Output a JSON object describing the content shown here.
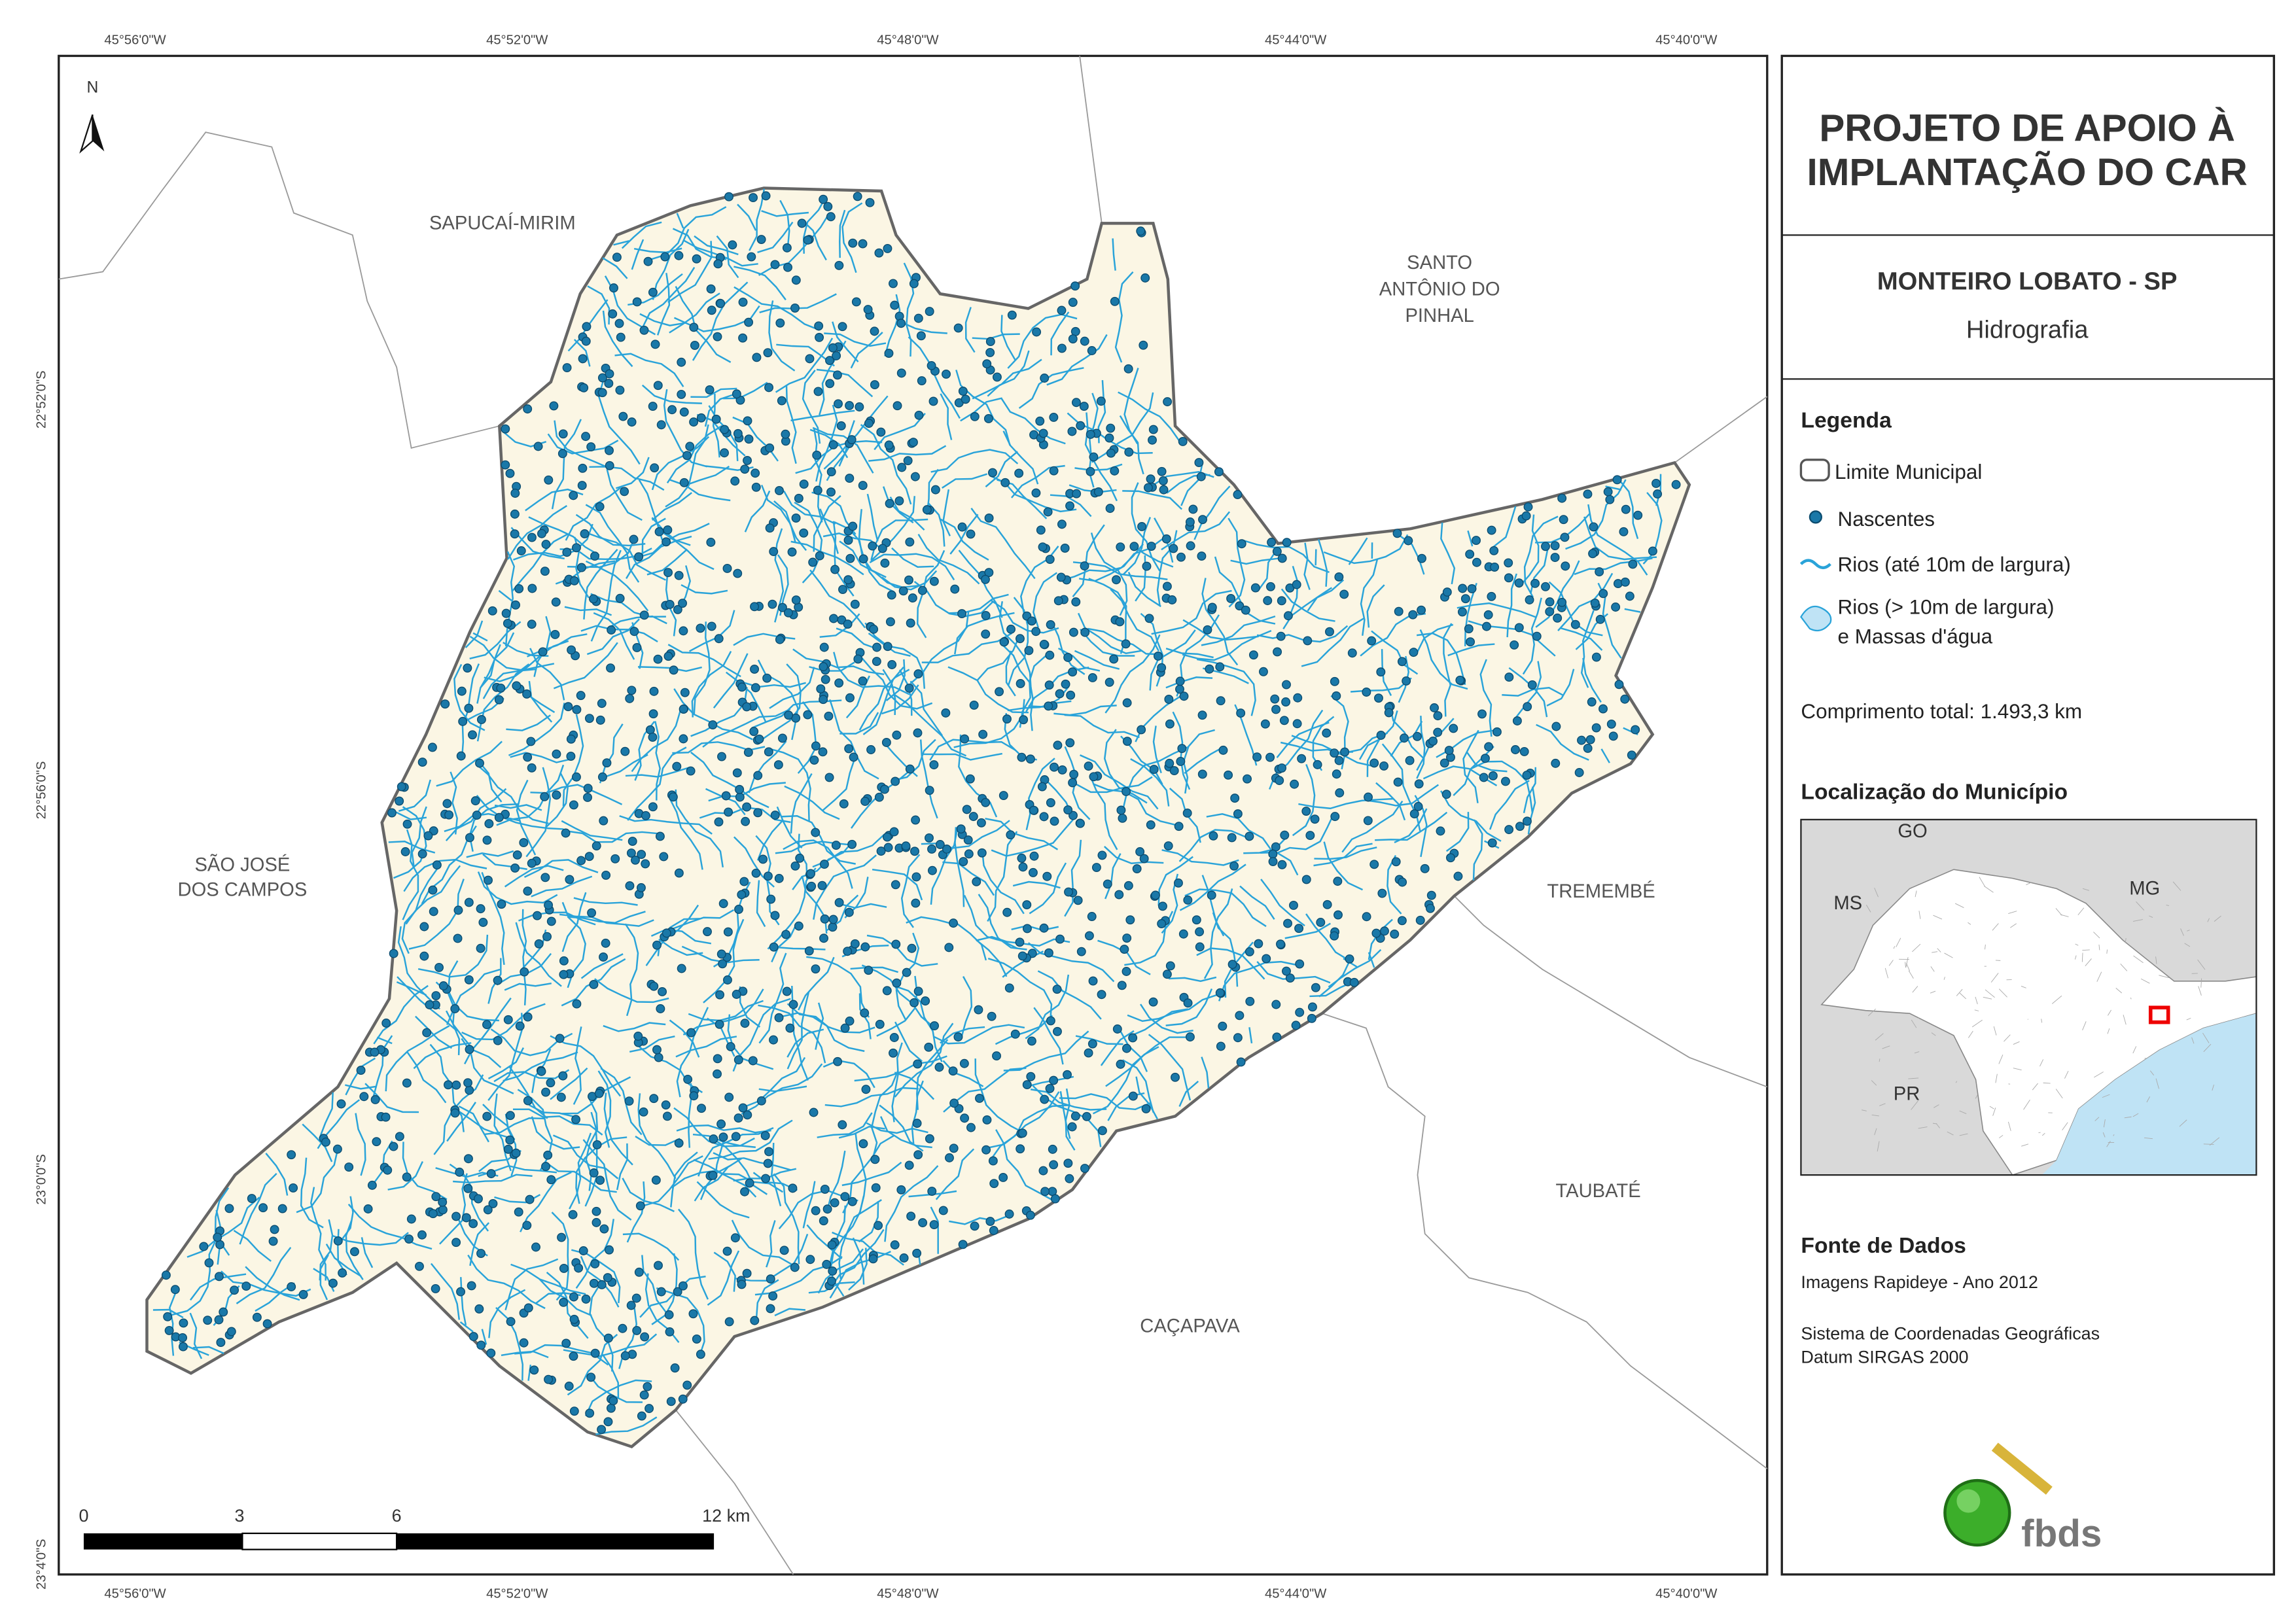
{
  "map": {
    "lon_labels": [
      "45°56'0\"W",
      "45°52'0\"W",
      "45°48'0\"W",
      "45°44'0\"W",
      "45°40'0\"W"
    ],
    "lat_labels": [
      "22°52'0\"S",
      "22°56'0\"S",
      "23°0'0\"S",
      "23°4'0\"S"
    ],
    "north": "N",
    "places": [
      {
        "lines": [
          "SAPUCAÍ-MIRIM"
        ]
      },
      {
        "lines": [
          "SANTO",
          "ANTÔNIO DO",
          "PINHAL"
        ]
      },
      {
        "lines": [
          "SÃO JOSÉ",
          "DOS CAMPOS"
        ]
      },
      {
        "lines": [
          "TREMEMBÉ"
        ]
      },
      {
        "lines": [
          "TAUBATÉ"
        ]
      },
      {
        "lines": [
          "CAÇAPAVA"
        ]
      }
    ],
    "scale_bar": [
      "0",
      "3",
      "6",
      "12 km"
    ]
  },
  "panel": {
    "title": [
      "PROJETO DE APOIO À",
      "IMPLANTAÇÃO DO CAR"
    ],
    "municipality": "MONTEIRO LOBATO - SP",
    "theme": "Hidrografia",
    "legend": {
      "title": "Legenda",
      "items": [
        "Limite Municipal",
        "Nascentes",
        "Rios (até 10m de largura)",
        "Rios (> 10m de largura)",
        "e Massas d'água"
      ]
    },
    "total_length": "Comprimento total:  1.493,3 km",
    "location": {
      "title": "Localização do Município",
      "labels": [
        "GO",
        "MS",
        "MG",
        "PR"
      ]
    },
    "sources": {
      "title": "Fonte de Dados",
      "lines": [
        "Imagens Rapideye - Ano 2012",
        "Sistema de Coordenadas Geográficas",
        "Datum SIRGAS 2000"
      ]
    },
    "logo": "fbds"
  }
}
